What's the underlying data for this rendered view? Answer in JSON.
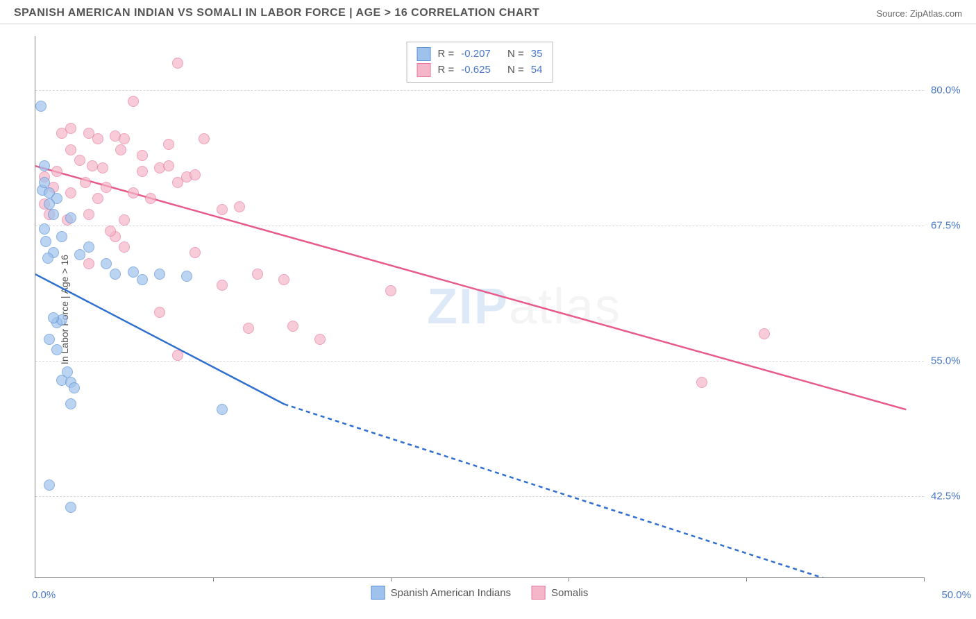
{
  "header": {
    "title": "SPANISH AMERICAN INDIAN VS SOMALI IN LABOR FORCE | AGE > 16 CORRELATION CHART",
    "source": "Source: ZipAtlas.com"
  },
  "chart": {
    "type": "scatter",
    "yaxis_label": "In Labor Force | Age > 16",
    "xlim": [
      0,
      50
    ],
    "ylim": [
      35,
      85
    ],
    "yticks": [
      42.5,
      55.0,
      67.5,
      80.0
    ],
    "ytick_labels": [
      "42.5%",
      "55.0%",
      "67.5%",
      "80.0%"
    ],
    "xtick_positions": [
      0,
      10,
      20,
      30,
      40,
      50
    ],
    "xlabel_start": "0.0%",
    "xlabel_end": "50.0%",
    "grid_color": "#d8d8d8",
    "axis_color": "#888888",
    "background_color": "#ffffff",
    "watermark_text_a": "ZIP",
    "watermark_text_b": "atlas"
  },
  "series": {
    "blue": {
      "label": "Spanish American Indians",
      "fill_color": "#9fc2ed",
      "stroke_color": "#5a8fd6",
      "line_color": "#2f6fcf",
      "r_label": "R =",
      "r_value": "-0.207",
      "n_label": "N =",
      "n_value": "35",
      "points": [
        [
          0.3,
          78.5
        ],
        [
          0.5,
          73.0
        ],
        [
          0.4,
          70.8
        ],
        [
          0.8,
          70.5
        ],
        [
          1.2,
          70.0
        ],
        [
          1.0,
          68.5
        ],
        [
          2.0,
          68.2
        ],
        [
          1.5,
          66.5
        ],
        [
          0.5,
          67.2
        ],
        [
          1.0,
          65.0
        ],
        [
          0.7,
          64.5
        ],
        [
          2.5,
          64.8
        ],
        [
          4.5,
          63.0
        ],
        [
          5.5,
          63.2
        ],
        [
          7.0,
          63.0
        ],
        [
          6.0,
          62.5
        ],
        [
          8.5,
          62.8
        ],
        [
          1.2,
          58.5
        ],
        [
          1.5,
          58.8
        ],
        [
          0.8,
          57.0
        ],
        [
          1.5,
          53.2
        ],
        [
          2.0,
          53.0
        ],
        [
          2.2,
          52.5
        ],
        [
          2.0,
          51.0
        ],
        [
          10.5,
          50.5
        ],
        [
          0.8,
          43.5
        ],
        [
          2.0,
          41.5
        ],
        [
          0.5,
          71.5
        ],
        [
          0.8,
          69.5
        ],
        [
          3.0,
          65.5
        ],
        [
          4.0,
          64.0
        ],
        [
          1.0,
          59.0
        ],
        [
          1.8,
          54.0
        ],
        [
          1.2,
          56.0
        ],
        [
          0.6,
          66.0
        ]
      ],
      "trend": {
        "x1": 0,
        "y1": 63.0,
        "x2": 14,
        "y2": 51.0,
        "x2_dash": 48,
        "y2_dash": 33.0
      }
    },
    "pink": {
      "label": "Somalis",
      "fill_color": "#f4b6c8",
      "stroke_color": "#e77a9e",
      "line_color": "#e85a8a",
      "r_label": "R =",
      "r_value": "-0.625",
      "n_label": "N =",
      "n_value": "54",
      "points": [
        [
          8.0,
          82.5
        ],
        [
          5.5,
          79.0
        ],
        [
          1.5,
          76.0
        ],
        [
          2.0,
          76.5
        ],
        [
          3.0,
          76.0
        ],
        [
          3.5,
          75.5
        ],
        [
          4.5,
          75.8
        ],
        [
          5.0,
          75.5
        ],
        [
          4.8,
          74.5
        ],
        [
          7.5,
          75.0
        ],
        [
          9.5,
          75.5
        ],
        [
          2.5,
          73.5
        ],
        [
          3.2,
          73.0
        ],
        [
          6.0,
          72.5
        ],
        [
          7.0,
          72.8
        ],
        [
          8.5,
          72.0
        ],
        [
          8.0,
          71.5
        ],
        [
          9.0,
          72.2
        ],
        [
          1.0,
          71.0
        ],
        [
          2.0,
          70.5
        ],
        [
          0.5,
          69.5
        ],
        [
          0.8,
          68.5
        ],
        [
          3.5,
          70.0
        ],
        [
          5.5,
          70.5
        ],
        [
          10.5,
          69.0
        ],
        [
          11.5,
          69.2
        ],
        [
          4.5,
          66.5
        ],
        [
          5.0,
          65.5
        ],
        [
          3.0,
          64.0
        ],
        [
          12.5,
          63.0
        ],
        [
          14.0,
          62.5
        ],
        [
          10.5,
          62.0
        ],
        [
          20.0,
          61.5
        ],
        [
          7.0,
          59.5
        ],
        [
          12.0,
          58.0
        ],
        [
          14.5,
          58.2
        ],
        [
          8.0,
          55.5
        ],
        [
          16.0,
          57.0
        ],
        [
          41.0,
          57.5
        ],
        [
          37.5,
          53.0
        ],
        [
          0.5,
          72.0
        ],
        [
          1.2,
          72.5
        ],
        [
          2.8,
          71.5
        ],
        [
          4.0,
          71.0
        ],
        [
          6.5,
          70.0
        ],
        [
          5.0,
          68.0
        ],
        [
          6.0,
          74.0
        ],
        [
          7.5,
          73.0
        ],
        [
          3.0,
          68.5
        ],
        [
          4.2,
          67.0
        ],
        [
          2.0,
          74.5
        ],
        [
          3.8,
          72.8
        ],
        [
          1.8,
          68.0
        ],
        [
          9.0,
          65.0
        ]
      ],
      "trend": {
        "x1": 0,
        "y1": 73.0,
        "x2": 49,
        "y2": 50.5
      }
    }
  }
}
